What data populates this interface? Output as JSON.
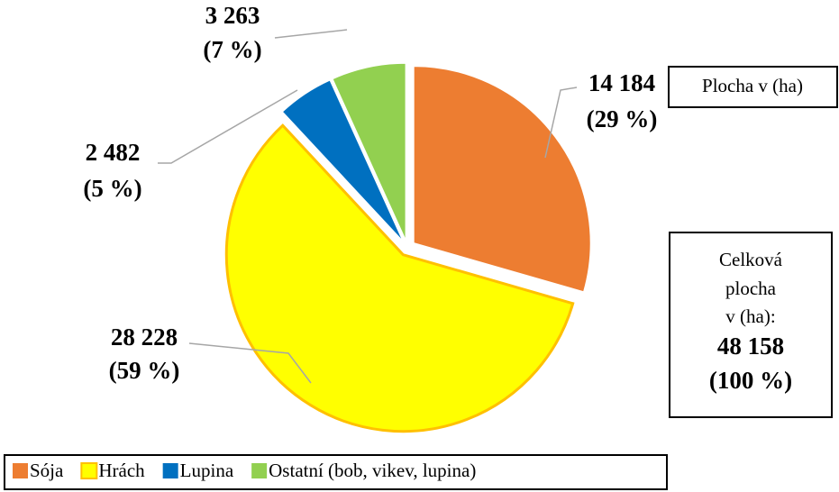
{
  "chart_data": {
    "type": "pie",
    "categories": [
      "Sója",
      "Hrách",
      "Lupina",
      "Ostatní (bob, vikev, lupina)"
    ],
    "values": [
      14184,
      28228,
      2482,
      3263
    ],
    "value_labels": [
      "14 184",
      "28 228",
      "2 482",
      "3 263"
    ],
    "percent_labels": [
      "(29 %)",
      "(59 %)",
      "(5 %)",
      "(7 %)"
    ],
    "colors": [
      "#ED7D31",
      "#FFFF00",
      "#0070C0",
      "#92D050"
    ],
    "unit_box": "Plocha v (ha)",
    "total_box": {
      "lines": [
        "Celková",
        "plocha",
        "v (ha):"
      ],
      "value_label": "48 158",
      "percent_label": "(100 %)"
    },
    "legend": true
  }
}
